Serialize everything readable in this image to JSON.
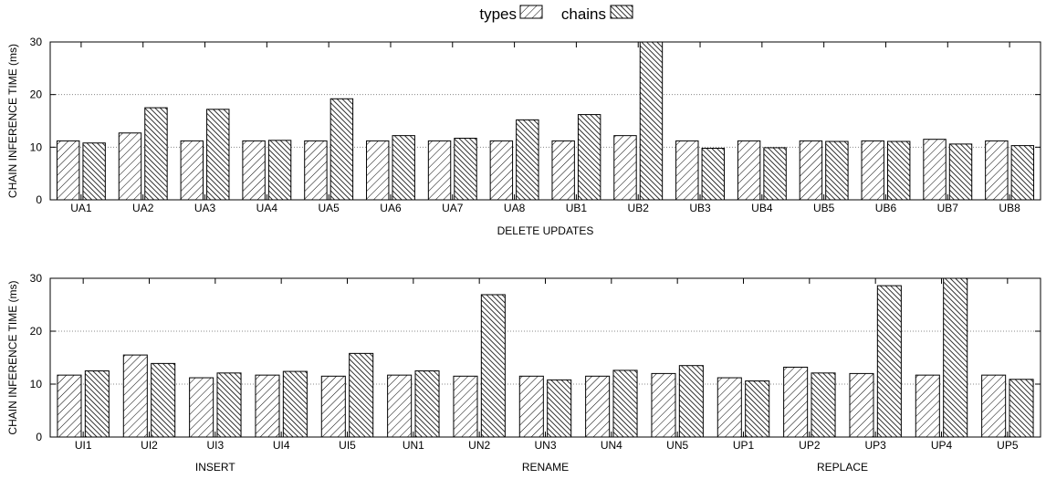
{
  "legend": [
    {
      "label": "types",
      "pattern": "hatch-light"
    },
    {
      "label": "chains",
      "pattern": "hatch-dark"
    }
  ],
  "chart_data": [
    {
      "type": "bar",
      "ylabel": "CHAIN INFERENCE TIME (ms)",
      "xlabel": "DELETE UPDATES",
      "group_labels": [],
      "ylim": [
        0,
        30
      ],
      "yticks": [
        0,
        10,
        20,
        30
      ],
      "grid": true,
      "categories": [
        "UA1",
        "UA2",
        "UA3",
        "UA4",
        "UA5",
        "UA6",
        "UA7",
        "UA8",
        "UB1",
        "UB2",
        "UB3",
        "UB4",
        "UB5",
        "UB6",
        "UB7",
        "UB8"
      ],
      "series": [
        {
          "name": "types",
          "values": [
            11.2,
            12.7,
            11.2,
            11.2,
            11.2,
            11.2,
            11.2,
            11.2,
            11.2,
            12.2,
            11.2,
            11.2,
            11.2,
            11.2,
            11.5,
            11.2
          ]
        },
        {
          "name": "chains",
          "values": [
            10.8,
            17.5,
            17.2,
            11.3,
            19.2,
            12.2,
            11.7,
            15.2,
            16.2,
            30.0,
            9.8,
            9.9,
            11.1,
            11.1,
            10.6,
            10.3
          ]
        }
      ]
    },
    {
      "type": "bar",
      "ylabel": "CHAIN INFERENCE TIME (ms)",
      "xlabel": "",
      "group_labels": [
        {
          "text": "INSERT",
          "at": 2
        },
        {
          "text": "RENAME",
          "at": 7
        },
        {
          "text": "REPLACE",
          "at": 11.5
        }
      ],
      "ylim": [
        0,
        30
      ],
      "yticks": [
        0,
        10,
        20,
        30
      ],
      "grid": true,
      "categories": [
        "UI1",
        "UI2",
        "UI3",
        "UI4",
        "UI5",
        "UN1",
        "UN2",
        "UN3",
        "UN4",
        "UN5",
        "UP1",
        "UP2",
        "UP3",
        "UP4",
        "UP5"
      ],
      "series": [
        {
          "name": "types",
          "values": [
            11.7,
            15.5,
            11.2,
            11.7,
            11.5,
            11.7,
            11.5,
            11.5,
            11.5,
            12.0,
            11.2,
            13.2,
            12.0,
            11.7,
            11.7
          ]
        },
        {
          "name": "chains",
          "values": [
            12.5,
            13.9,
            12.1,
            12.4,
            15.8,
            12.5,
            26.9,
            10.8,
            12.6,
            13.5,
            10.6,
            12.1,
            28.6,
            30.0,
            10.9
          ]
        }
      ]
    }
  ]
}
